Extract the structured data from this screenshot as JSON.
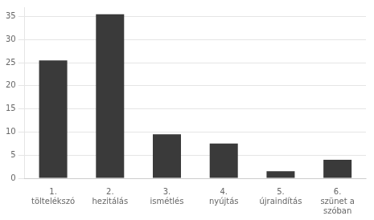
{
  "chart_data": {
    "type": "bar",
    "categories": [
      "1.\ntöltelékszó",
      "2.\nhezitálás",
      "3.\nismétlés",
      "4.\nnyújtás",
      "5.\nújraindítás",
      "6.\nszünet a\nszóban"
    ],
    "values": [
      25.5,
      35.5,
      9.5,
      7.5,
      1.5,
      4.0
    ],
    "color": "#3a3a3a",
    "ylim": [
      0,
      37
    ],
    "yticks": [
      0,
      5,
      10,
      15,
      20,
      25,
      30,
      35
    ],
    "grid": true
  }
}
